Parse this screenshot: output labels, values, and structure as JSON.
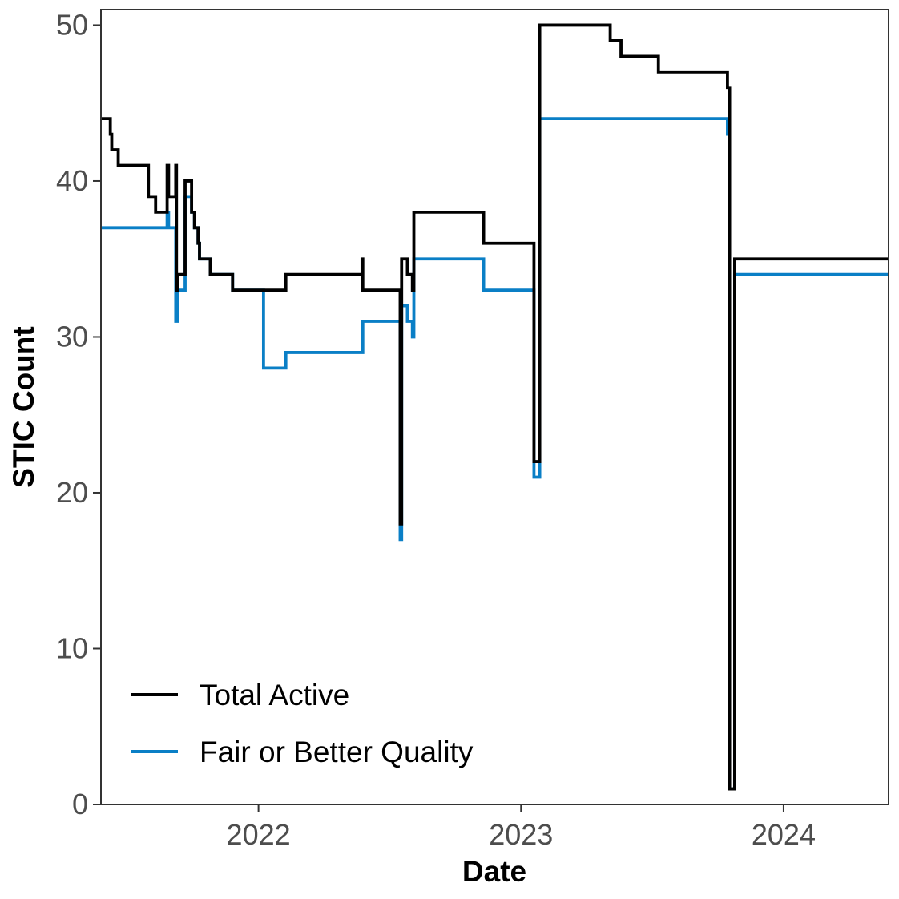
{
  "chart_data": {
    "type": "line",
    "xlabel": "Date",
    "ylabel": "STIC Count",
    "xlim": [
      "2021-05-27",
      "2024-05-26"
    ],
    "ylim": [
      0,
      51
    ],
    "x_ticks": [
      "2022-01-01",
      "2023-01-01",
      "2024-01-01"
    ],
    "x_tick_labels": [
      "2022",
      "2023",
      "2024"
    ],
    "y_ticks": [
      0,
      10,
      20,
      30,
      40,
      50
    ],
    "y_tick_labels": [
      "0",
      "10",
      "20",
      "30",
      "40",
      "50"
    ],
    "grid": false,
    "legend_position": "bottom-left",
    "line_style": "step",
    "series": [
      {
        "name": "Total Active",
        "color": "#000000",
        "points": [
          [
            "2021-05-27",
            44
          ],
          [
            "2021-06-09",
            43
          ],
          [
            "2021-06-11",
            42
          ],
          [
            "2021-06-20",
            41
          ],
          [
            "2021-08-01",
            39
          ],
          [
            "2021-08-11",
            38
          ],
          [
            "2021-08-27",
            41
          ],
          [
            "2021-08-29",
            39
          ],
          [
            "2021-09-08",
            41
          ],
          [
            "2021-09-09",
            33
          ],
          [
            "2021-09-11",
            34
          ],
          [
            "2021-09-21",
            40
          ],
          [
            "2021-09-30",
            38
          ],
          [
            "2021-10-04",
            37
          ],
          [
            "2021-10-09",
            36
          ],
          [
            "2021-10-11",
            35
          ],
          [
            "2021-10-26",
            34
          ],
          [
            "2021-11-26",
            33
          ],
          [
            "2022-02-08",
            34
          ],
          [
            "2022-05-25",
            35
          ],
          [
            "2022-05-26",
            33
          ],
          [
            "2022-07-17",
            18
          ],
          [
            "2022-07-19",
            35
          ],
          [
            "2022-07-27",
            34
          ],
          [
            "2022-08-03",
            33
          ],
          [
            "2022-08-05",
            38
          ],
          [
            "2022-11-10",
            36
          ],
          [
            "2023-01-19",
            22
          ],
          [
            "2023-01-27",
            50
          ],
          [
            "2023-05-05",
            49
          ],
          [
            "2023-05-20",
            48
          ],
          [
            "2023-07-11",
            47
          ],
          [
            "2023-10-15",
            46
          ],
          [
            "2023-10-18",
            1
          ],
          [
            "2023-10-25",
            35
          ],
          [
            "2024-05-26",
            35
          ]
        ]
      },
      {
        "name": "Fair or Better Quality",
        "color": "#0a7fc6",
        "points": [
          [
            "2021-05-27",
            37
          ],
          [
            "2021-08-27",
            38
          ],
          [
            "2021-08-29",
            37
          ],
          [
            "2021-09-08",
            31
          ],
          [
            "2021-09-11",
            33
          ],
          [
            "2021-09-21",
            39
          ],
          [
            "2021-09-30",
            38
          ],
          [
            "2021-10-04",
            37
          ],
          [
            "2021-10-09",
            36
          ],
          [
            "2021-10-11",
            35
          ],
          [
            "2021-10-26",
            34
          ],
          [
            "2021-11-26",
            33
          ],
          [
            "2022-01-08",
            28
          ],
          [
            "2022-02-08",
            29
          ],
          [
            "2022-05-26",
            31
          ],
          [
            "2022-07-17",
            17
          ],
          [
            "2022-07-19",
            32
          ],
          [
            "2022-07-27",
            31
          ],
          [
            "2022-08-03",
            30
          ],
          [
            "2022-08-05",
            35
          ],
          [
            "2022-11-10",
            33
          ],
          [
            "2023-01-19",
            21
          ],
          [
            "2023-01-27",
            44
          ],
          [
            "2023-10-15",
            43
          ],
          [
            "2023-10-18",
            1
          ],
          [
            "2023-10-25",
            34
          ],
          [
            "2024-05-26",
            34
          ]
        ]
      }
    ]
  }
}
